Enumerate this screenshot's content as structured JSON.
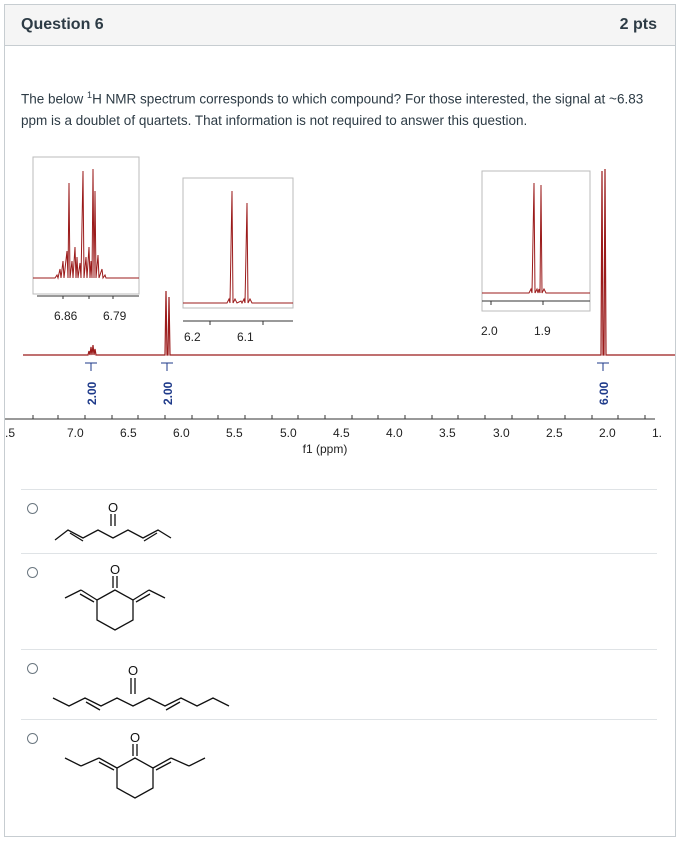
{
  "question": {
    "title": "Question 6",
    "points": "2 pts",
    "text_part1": "The below ",
    "text_sup": "1",
    "text_part2": "H NMR spectrum corresponds to which compound? For those interested, the signal at ~6.83 ppm is a doublet of quartets. That information is not required to answer this question."
  },
  "spectrum": {
    "axis_label": "f1 (ppm)",
    "axis_ticks": [
      ".5",
      "7.0",
      "6.5",
      "6.0",
      "5.5",
      "5.0",
      "4.5",
      "4.0",
      "3.5",
      "3.0",
      "2.5",
      "2.0",
      "1."
    ],
    "integrals": [
      "2.00",
      "2.00",
      "6.00"
    ],
    "inset1_ticks": [
      "6.86",
      "6.79"
    ],
    "inset2_ticks": [
      "6.2",
      "6.1"
    ],
    "inset3_ticks": [
      "2.0",
      "1.9"
    ],
    "peak_color": "#9b1b1b"
  },
  "answers": [
    {
      "label": "O",
      "structure": "hepta-2,5-dien-4-one (linear, methyl-capped)"
    },
    {
      "label": "O",
      "structure": "2,6-di(ethylidene)cyclohexanone"
    },
    {
      "label": "O",
      "structure": "nona-3,6-dien-5-one (linear, ethyl-capped)"
    },
    {
      "label": "O",
      "structure": "2,6-di(propylidene)cyclohexanone"
    }
  ]
}
